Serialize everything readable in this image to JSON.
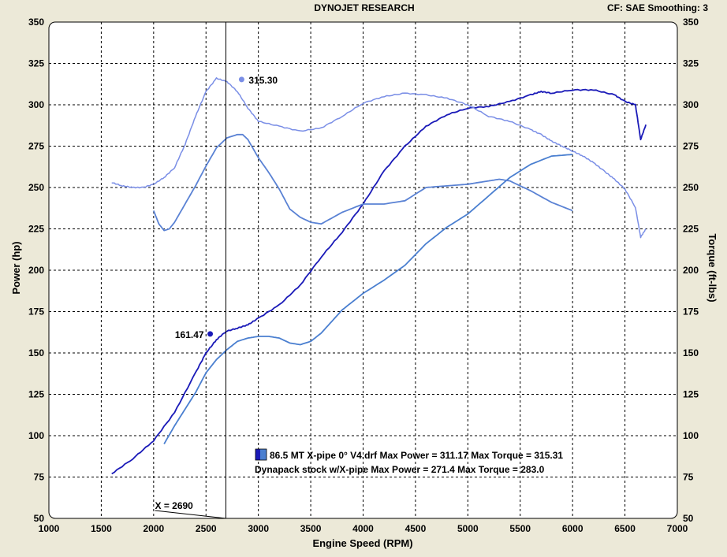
{
  "header": {
    "title": "DYNOJET RESEARCH",
    "cf_smoothing": "CF: SAE  Smoothing: 3"
  },
  "colors": {
    "background": "#ece9d8",
    "plot_bg": "#ffffff",
    "run1": "#1a1ab8",
    "run2": "#4a7fd0",
    "run2_torque": "#7a8ee6"
  },
  "chart_data": {
    "type": "line",
    "xlabel": "Engine Speed (RPM)",
    "ylabel": "Power (hp)",
    "y2label": "Torque (ft-lbs)",
    "xlim": [
      1000,
      7000
    ],
    "ylim": [
      50,
      350
    ],
    "y2lim": [
      50,
      350
    ],
    "x_ticks": [
      1000,
      1500,
      2000,
      2500,
      3000,
      3500,
      4000,
      4500,
      5000,
      5500,
      6000,
      6500,
      7000
    ],
    "y_ticks": [
      50,
      75,
      100,
      125,
      150,
      175,
      200,
      225,
      250,
      275,
      300,
      325,
      350
    ],
    "grid": true,
    "cursor": {
      "x": 2690,
      "label": "X = 2690"
    },
    "annotations": [
      {
        "series": "run1-torque",
        "x": 2840,
        "y": 315.3,
        "label": "315.30"
      },
      {
        "series": "run1-power",
        "x": 2540,
        "y": 161.5,
        "label": "161.47"
      }
    ],
    "legend": [
      "86.5 MT X-pipe 0° V4.drf Max Power = 311.17 Max Torque = 315.31",
      "Dynapack  stock w/X-pipe  Max Power = 271.4 Max Torque = 283.0"
    ],
    "series": [
      {
        "id": "run1-power",
        "color": "#1a1ab8",
        "width": 1.8,
        "x": [
          1600,
          1800,
          2000,
          2200,
          2400,
          2500,
          2600,
          2690,
          2800,
          2900,
          3000,
          3200,
          3400,
          3600,
          3800,
          4000,
          4200,
          4400,
          4600,
          4800,
          5000,
          5200,
          5400,
          5600,
          5700,
          5800,
          6000,
          6200,
          6400,
          6500,
          6600,
          6650,
          6700
        ],
        "y": [
          77,
          86,
          97,
          114,
          138,
          150,
          158,
          163,
          165,
          167,
          171,
          179,
          191,
          208,
          223,
          240,
          260,
          275,
          287,
          294,
          298,
          299,
          302,
          306,
          308,
          307,
          309,
          309,
          306,
          302,
          300,
          279,
          288
        ]
      },
      {
        "id": "run1-torque",
        "color": "#7a8ee6",
        "width": 1.5,
        "x": [
          1600,
          1700,
          1800,
          1900,
          2000,
          2100,
          2200,
          2300,
          2400,
          2500,
          2600,
          2700,
          2800,
          2900,
          3000,
          3200,
          3400,
          3600,
          3800,
          4000,
          4200,
          4400,
          4600,
          4800,
          5000,
          5200,
          5400,
          5600,
          5700,
          5800,
          5900,
          6000,
          6100,
          6200,
          6300,
          6400,
          6500,
          6600,
          6650,
          6700
        ],
        "y": [
          253,
          251,
          250,
          250,
          252,
          256,
          262,
          276,
          293,
          308,
          316,
          314,
          308,
          298,
          290,
          287,
          284,
          286,
          293,
          301,
          305,
          307,
          306,
          304,
          300,
          293,
          290,
          285,
          282,
          278,
          275,
          272,
          269,
          265,
          260,
          255,
          249,
          238,
          220,
          225
        ]
      },
      {
        "id": "run2-power",
        "color": "#4a7fd0",
        "width": 1.8,
        "x": [
          2100,
          2200,
          2300,
          2400,
          2500,
          2600,
          2700,
          2800,
          2900,
          3000,
          3100,
          3200,
          3300,
          3400,
          3500,
          3600,
          3700,
          3800,
          3900,
          4000,
          4200,
          4400,
          4600,
          4800,
          5000,
          5200,
          5400,
          5600,
          5800,
          6000
        ],
        "y": [
          95,
          106,
          116,
          126,
          138,
          146,
          152,
          157,
          159,
          160,
          160,
          159,
          156,
          155,
          157,
          162,
          169,
          176,
          181,
          186,
          194,
          203,
          216,
          226,
          234,
          245,
          256,
          264,
          269,
          270
        ]
      },
      {
        "id": "run2-torque",
        "color": "#5a82d4",
        "width": 1.8,
        "x": [
          2000,
          2050,
          2100,
          2150,
          2200,
          2300,
          2400,
          2500,
          2600,
          2700,
          2800,
          2850,
          2900,
          3000,
          3100,
          3200,
          3300,
          3400,
          3500,
          3600,
          3800,
          4000,
          4200,
          4400,
          4600,
          4800,
          5000,
          5200,
          5300,
          5400,
          5600,
          5800,
          6000
        ],
        "y": [
          236,
          228,
          224,
          225,
          229,
          240,
          251,
          263,
          274,
          280,
          282,
          282,
          279,
          268,
          259,
          249,
          237,
          232,
          229,
          228,
          235,
          240,
          240,
          242,
          250,
          251,
          252,
          254,
          255,
          254,
          248,
          241,
          236
        ]
      }
    ]
  }
}
